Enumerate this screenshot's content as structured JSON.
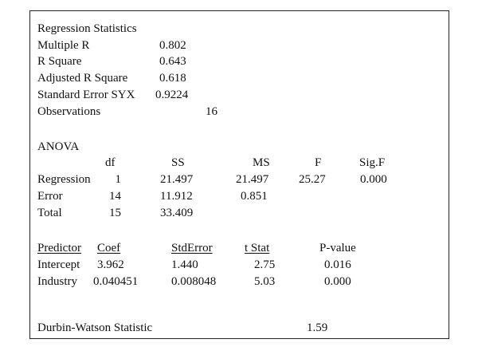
{
  "regression_statistics": {
    "title": "Regression Statistics",
    "rows": [
      {
        "label": "Multiple R",
        "value": "0.802"
      },
      {
        "label": "R Square",
        "value": "0.643"
      },
      {
        "label": "Adjusted R Square",
        "value": "0.618"
      },
      {
        "label": "Standard Error SYX",
        "value": "0.9224"
      },
      {
        "label": "Observations",
        "value": "16"
      }
    ]
  },
  "anova": {
    "title": "ANOVA",
    "headers": [
      "df",
      "SS",
      "MS",
      "F",
      "Sig.F"
    ],
    "rows": [
      {
        "source": "Regression",
        "df": "1",
        "ss": "21.497",
        "ms": "21.497",
        "f": "25.27",
        "sig_f": "0.000"
      },
      {
        "source": "Error",
        "df": "14",
        "ss": "11.912",
        "ms": "0.851",
        "f": "",
        "sig_f": ""
      },
      {
        "source": "Total",
        "df": "15",
        "ss": "33.409",
        "ms": "",
        "f": "",
        "sig_f": ""
      }
    ]
  },
  "coefficients": {
    "headers": [
      "Predictor",
      "Coef",
      "StdError",
      "t Stat",
      "P-value"
    ],
    "rows": [
      {
        "predictor": "Intercept",
        "coef": "3.962",
        "std_error": "1.440",
        "t_stat": "2.75",
        "p_value": "0.016"
      },
      {
        "predictor": "Industry",
        "coef": "0.040451",
        "std_error": "0.008048",
        "t_stat": "5.03",
        "p_value": "0.000"
      }
    ]
  },
  "durbin_watson": {
    "label": "Durbin-Watson Statistic",
    "value": "1.59"
  }
}
